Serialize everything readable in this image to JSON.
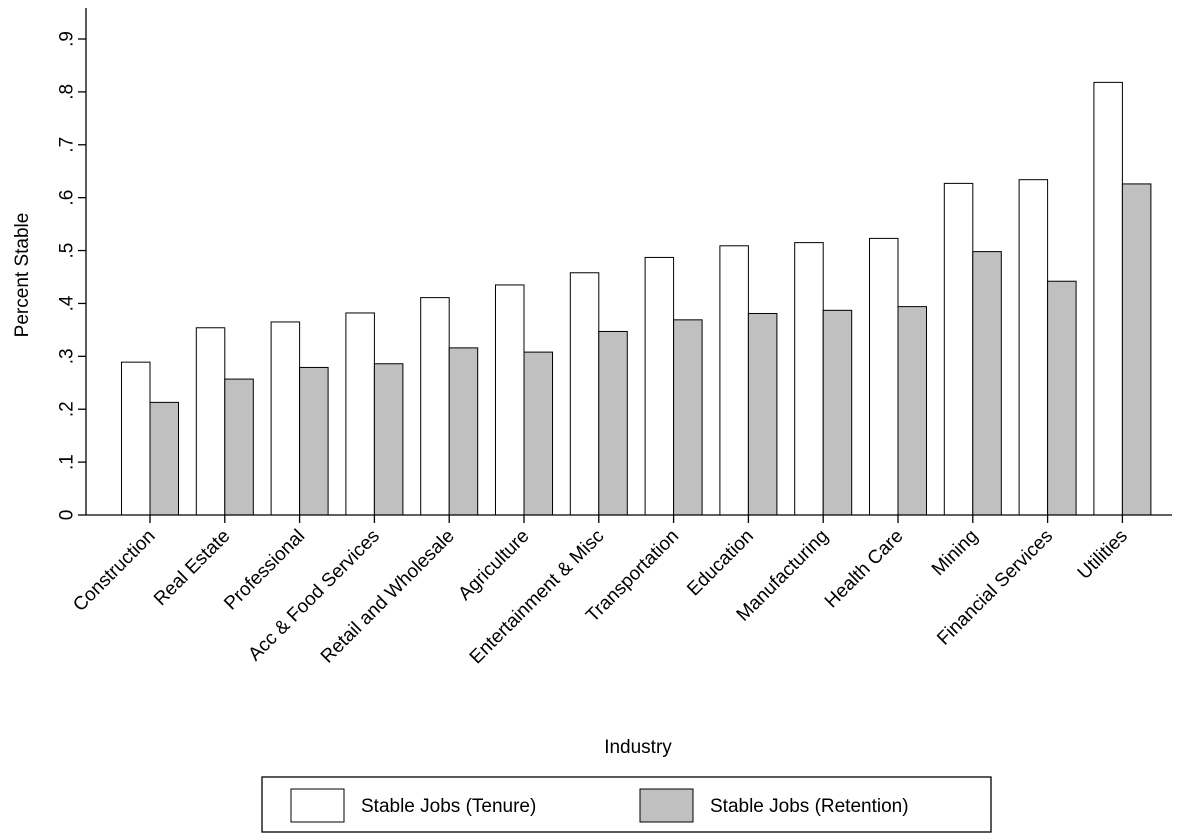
{
  "chart_data": {
    "type": "bar",
    "title": "",
    "xlabel": "Industry",
    "ylabel": "Percent Stable",
    "ylim": [
      0,
      0.95
    ],
    "yticks": [
      0,
      0.1,
      0.2,
      0.3,
      0.4,
      0.5,
      0.6,
      0.7,
      0.8,
      0.9
    ],
    "ytick_labels": [
      "0",
      ".1",
      ".2",
      ".3",
      ".4",
      ".5",
      ".6",
      ".7",
      ".8",
      ".9"
    ],
    "grid": false,
    "legend_position": "bottom",
    "categories": [
      "Construction",
      "Real Estate",
      "Professional",
      "Acc & Food Services",
      "Retail and Wholesale",
      "Agriculture",
      "Entertainment & Misc",
      "Transportation",
      "Education",
      "Manufacturing",
      "Health Care",
      "Mining",
      "Financial Services",
      "Utilities"
    ],
    "series": [
      {
        "name": "Stable Jobs (Tenure)",
        "color": "#ffffff",
        "values": [
          0.289,
          0.354,
          0.365,
          0.382,
          0.411,
          0.435,
          0.458,
          0.487,
          0.509,
          0.515,
          0.523,
          0.627,
          0.634,
          0.818
        ]
      },
      {
        "name": "Stable Jobs (Retention)",
        "color": "#c0c0c0",
        "values": [
          0.213,
          0.257,
          0.279,
          0.286,
          0.316,
          0.308,
          0.347,
          0.369,
          0.381,
          0.387,
          0.394,
          0.498,
          0.442,
          0.626
        ]
      }
    ]
  }
}
